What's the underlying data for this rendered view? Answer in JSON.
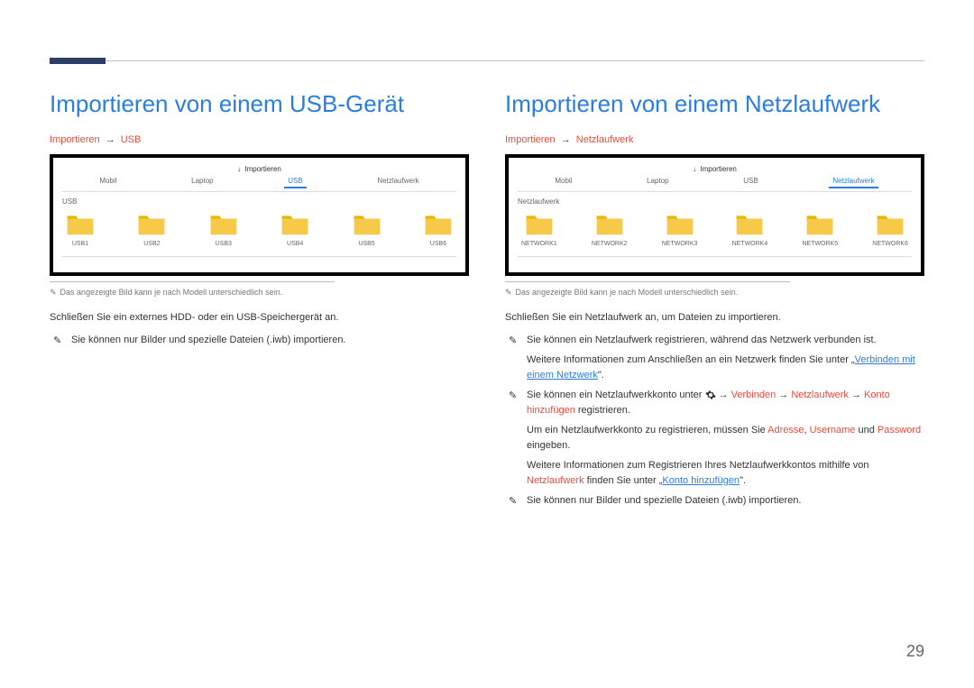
{
  "page_number": "29",
  "colors": {
    "accent": "#2a7de1",
    "red": "#e74c3c",
    "folder": "#f7c948",
    "folder_tab": "#e6b800",
    "dark_bar": "#2c3e66"
  },
  "left": {
    "title": "Importieren von einem USB-Gerät",
    "breadcrumb_1": "Importieren",
    "breadcrumb_2": "USB",
    "shot": {
      "header": "Importieren",
      "tabs": [
        "Mobil",
        "Laptop",
        "USB",
        "Netzlaufwerk"
      ],
      "active_tab_index": 2,
      "sublabel": "USB",
      "folders": [
        "USB1",
        "USB2",
        "USB3",
        "USB4",
        "USB5",
        "USB6"
      ]
    },
    "caption": "Das angezeigte Bild kann je nach Modell unterschiedlich sein.",
    "body1": "Schließen Sie ein externes HDD- oder ein USB-Speichergerät an.",
    "bullet1": "Sie können nur Bilder und spezielle Dateien (.iwb) importieren."
  },
  "right": {
    "title": "Importieren von einem Netzlaufwerk",
    "breadcrumb_1": "Importieren",
    "breadcrumb_2": "Netzlaufwerk",
    "shot": {
      "header": "Importieren",
      "tabs": [
        "Mobil",
        "Laptop",
        "USB",
        "Netzlaufwerk"
      ],
      "active_tab_index": 3,
      "sublabel": "Netzlaufwerk",
      "folders": [
        "NETWORK1",
        "NETWORK2",
        "NETWORK3",
        "NETWORK4",
        "NETWORK5",
        "NETWORK6"
      ]
    },
    "caption": "Das angezeigte Bild kann je nach Modell unterschiedlich sein.",
    "body1": "Schließen Sie ein Netzlaufwerk an, um Dateien zu importieren.",
    "bullet1_pre": "Sie können ein Netzlaufwerk registrieren, während das Netzwerk verbunden ist.",
    "bullet1_line2_pre": "Weitere Informationen zum Anschließen an ein Netzwerk finden Sie unter „",
    "bullet1_link": "Verbinden mit einem Netzwerk",
    "bullet1_line2_post": "\".",
    "bullet2_pre": "Sie können ein Netzlaufwerkkonto unter ",
    "bullet2_path_1": "Verbinden",
    "bullet2_path_2": "Netzlaufwerk",
    "bullet2_path_3": "Konto hinzufügen",
    "bullet2_post": " registrieren.",
    "bullet2_line2_pre": "Um ein Netzlaufwerkkonto zu registrieren, müssen Sie ",
    "bullet2_adresse": "Adresse",
    "bullet2_comma1": ", ",
    "bullet2_username": "Username",
    "bullet2_und": " und ",
    "bullet2_password": "Password",
    "bullet2_line2_post": " eingeben.",
    "bullet2_line3_pre": "Weitere Informationen zum Registrieren Ihres Netzlaufwerkkontos mithilfe von ",
    "bullet2_netz": "Netzlaufwerk",
    "bullet2_line3_mid": " finden Sie unter „",
    "bullet2_link2": "Konto hinzufügen",
    "bullet2_line3_post": "\".",
    "bullet3": "Sie können nur Bilder und spezielle Dateien (.iwb) importieren."
  }
}
